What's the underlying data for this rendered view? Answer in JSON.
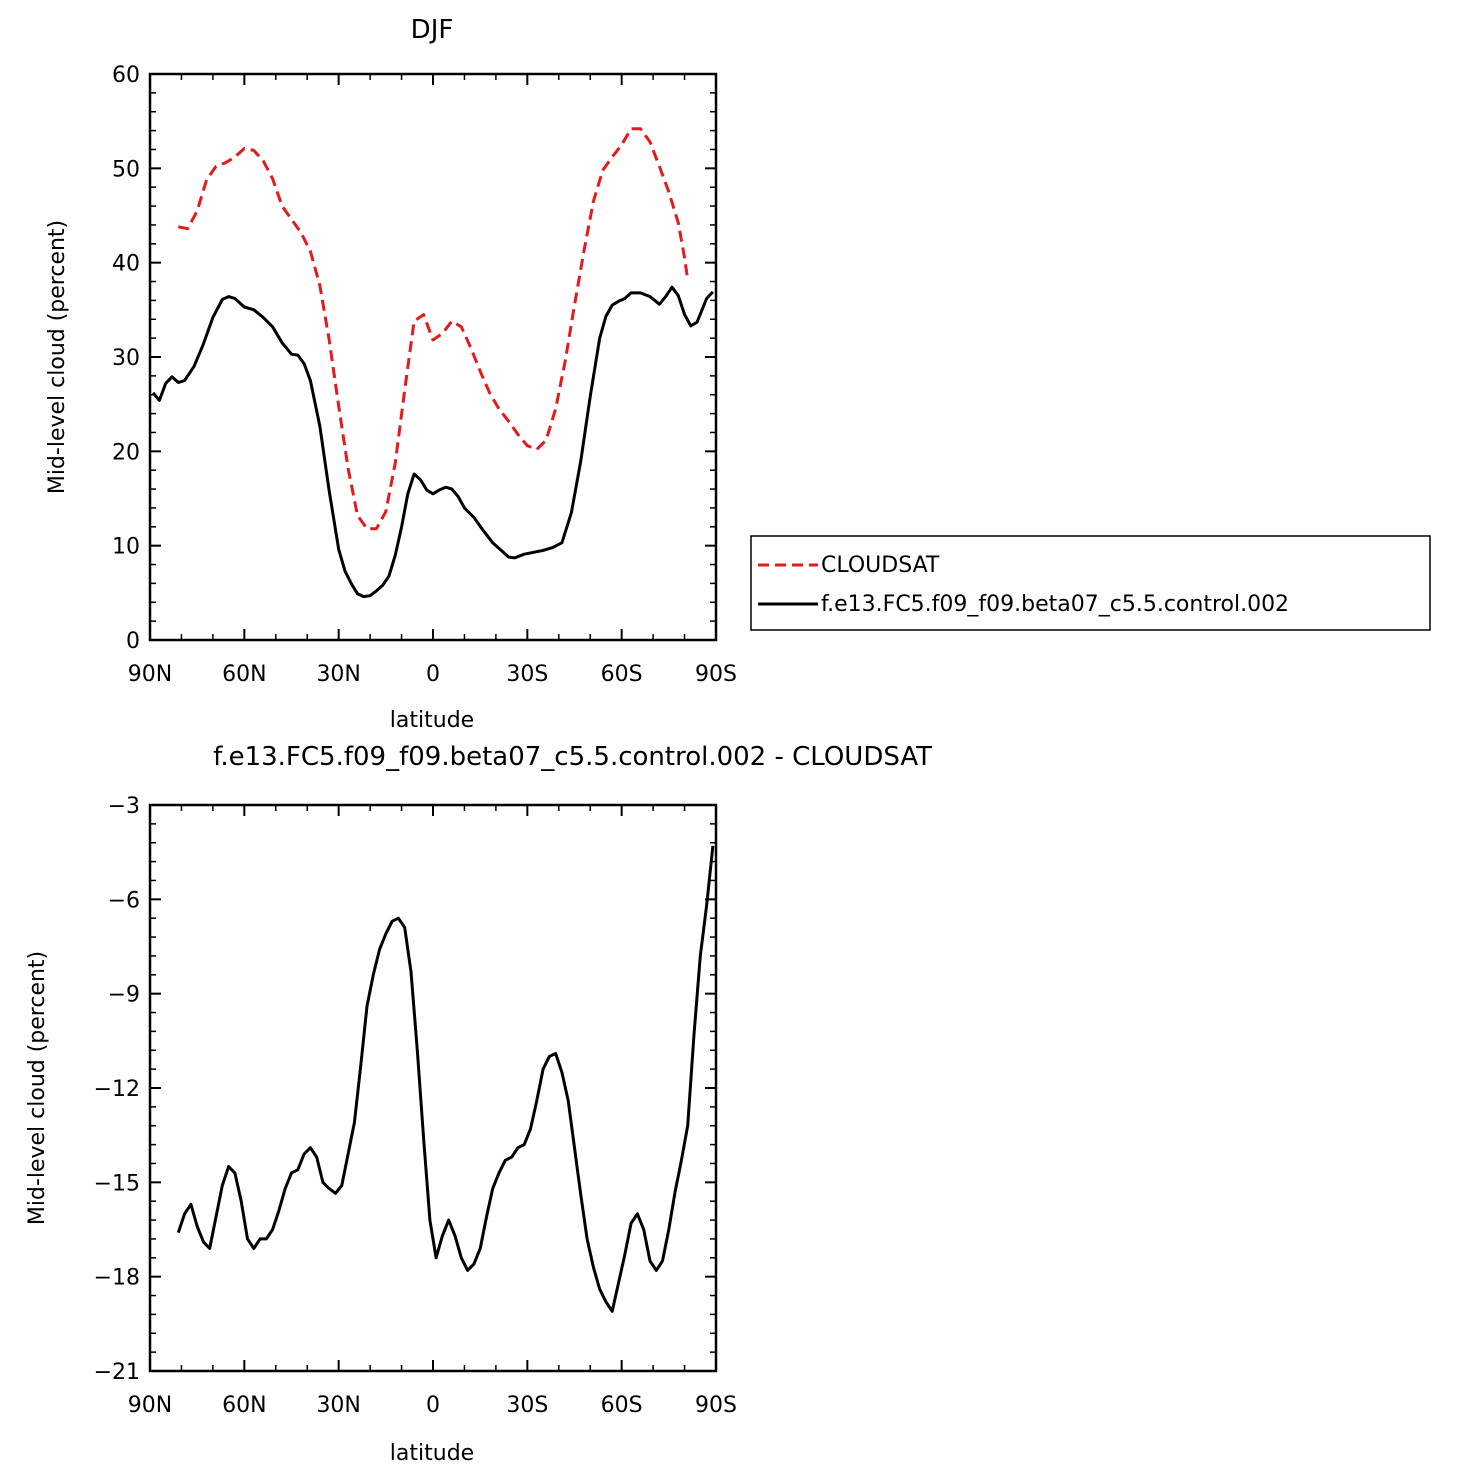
{
  "chart_data": [
    {
      "type": "line",
      "title": "DJF",
      "xlabel": "latitude",
      "ylabel": "Mid-level cloud (percent)",
      "xlim": [
        -90,
        90
      ],
      "ylim": [
        0,
        60
      ],
      "x_ticks": [
        -90,
        -60,
        -30,
        0,
        30,
        60,
        90
      ],
      "x_tick_labels": [
        "90N",
        "60N",
        "30N",
        "0",
        "30S",
        "60S",
        "90S"
      ],
      "y_ticks": [
        0,
        10,
        20,
        30,
        40,
        50,
        60
      ],
      "y_tick_labels": [
        "0",
        "10",
        "20",
        "30",
        "40",
        "50",
        "60"
      ],
      "legend_position": "right",
      "series": [
        {
          "name": "CLOUDSAT",
          "color": "#e41a1c",
          "style": "dashed",
          "points": [
            [
              -81,
              43.8
            ],
            [
              -78,
              43.6
            ],
            [
              -75,
              45.5
            ],
            [
              -72,
              48.8
            ],
            [
              -69,
              50.2
            ],
            [
              -66,
              50.6
            ],
            [
              -63,
              51.2
            ],
            [
              -60,
              52.1
            ],
            [
              -57,
              51.9
            ],
            [
              -54,
              50.8
            ],
            [
              -51,
              48.9
            ],
            [
              -48,
              46
            ],
            [
              -45,
              44.6
            ],
            [
              -42,
              43.2
            ],
            [
              -39,
              41.2
            ],
            [
              -36,
              37.6
            ],
            [
              -33,
              31.8
            ],
            [
              -30,
              24.8
            ],
            [
              -27,
              18.2
            ],
            [
              -24,
              13.2
            ],
            [
              -21,
              11.8
            ],
            [
              -18,
              11.8
            ],
            [
              -15,
              13.6
            ],
            [
              -12,
              18.8
            ],
            [
              -9,
              26.5
            ],
            [
              -6,
              33.8
            ],
            [
              -3,
              34.5
            ],
            [
              0,
              31.8
            ],
            [
              3,
              32.5
            ],
            [
              6,
              33.8
            ],
            [
              9,
              33.2
            ],
            [
              12,
              31
            ],
            [
              15,
              28.5
            ],
            [
              18,
              26.2
            ],
            [
              21,
              24.5
            ],
            [
              24,
              23.2
            ],
            [
              27,
              21.8
            ],
            [
              30,
              20.6
            ],
            [
              33,
              20.2
            ],
            [
              36,
              21.2
            ],
            [
              39,
              24.5
            ],
            [
              42,
              29.5
            ],
            [
              45,
              35.5
            ],
            [
              48,
              41.2
            ],
            [
              51,
              46.5
            ],
            [
              54,
              49.8
            ],
            [
              57,
              51.2
            ],
            [
              60,
              52.5
            ],
            [
              63,
              54.2
            ],
            [
              66,
              54.2
            ],
            [
              69,
              52.8
            ],
            [
              72,
              50.2
            ],
            [
              75,
              47.5
            ],
            [
              78,
              44.2
            ],
            [
              80,
              40.5
            ],
            [
              81,
              38.2
            ]
          ]
        },
        {
          "name": "f.e13.FC5.f09_f09.beta07_c5.5.control.002",
          "color": "#000000",
          "style": "solid",
          "points": [
            [
              -89,
              26.2
            ],
            [
              -87,
              25.4
            ],
            [
              -85,
              27.2
            ],
            [
              -83,
              27.9
            ],
            [
              -81,
              27.3
            ],
            [
              -79,
              27.5
            ],
            [
              -76,
              29
            ],
            [
              -73,
              31.4
            ],
            [
              -70,
              34.2
            ],
            [
              -67,
              36.1
            ],
            [
              -65,
              36.4
            ],
            [
              -63,
              36.2
            ],
            [
              -60,
              35.3
            ],
            [
              -57,
              35
            ],
            [
              -54,
              34.2
            ],
            [
              -51,
              33.2
            ],
            [
              -48,
              31.5
            ],
            [
              -45,
              30.3
            ],
            [
              -43,
              30.2
            ],
            [
              -41,
              29.3
            ],
            [
              -39,
              27.5
            ],
            [
              -36,
              22.7
            ],
            [
              -33,
              15.8
            ],
            [
              -30,
              9.6
            ],
            [
              -28,
              7.3
            ],
            [
              -26,
              6
            ],
            [
              -24,
              4.9
            ],
            [
              -22,
              4.6
            ],
            [
              -20,
              4.7
            ],
            [
              -18,
              5.2
            ],
            [
              -16,
              5.8
            ],
            [
              -14,
              6.8
            ],
            [
              -12,
              9
            ],
            [
              -10,
              12
            ],
            [
              -8,
              15.5
            ],
            [
              -6,
              17.6
            ],
            [
              -4,
              17
            ],
            [
              -2,
              15.9
            ],
            [
              0,
              15.5
            ],
            [
              2,
              15.9
            ],
            [
              4,
              16.2
            ],
            [
              6,
              16
            ],
            [
              8,
              15.2
            ],
            [
              10,
              14
            ],
            [
              13,
              13
            ],
            [
              16,
              11.6
            ],
            [
              19,
              10.3
            ],
            [
              22,
              9.4
            ],
            [
              24,
              8.8
            ],
            [
              26,
              8.7
            ],
            [
              29,
              9.1
            ],
            [
              32,
              9.3
            ],
            [
              35,
              9.5
            ],
            [
              38,
              9.8
            ],
            [
              41,
              10.3
            ],
            [
              44,
              13.5
            ],
            [
              47,
              19
            ],
            [
              50,
              25.8
            ],
            [
              53,
              32
            ],
            [
              55,
              34.3
            ],
            [
              57,
              35.5
            ],
            [
              59,
              35.9
            ],
            [
              61,
              36.2
            ],
            [
              63,
              36.8
            ],
            [
              66,
              36.8
            ],
            [
              69,
              36.4
            ],
            [
              72,
              35.6
            ],
            [
              74,
              36.4
            ],
            [
              76,
              37.4
            ],
            [
              78,
              36.5
            ],
            [
              80,
              34.5
            ],
            [
              82,
              33.3
            ],
            [
              84,
              33.7
            ],
            [
              87,
              36.2
            ],
            [
              89,
              36.9
            ]
          ]
        }
      ]
    },
    {
      "type": "line",
      "title": "f.e13.FC5.f09_f09.beta07_c5.5.control.002 - CLOUDSAT",
      "xlabel": "latitude",
      "ylabel": "Mid-level cloud (percent)",
      "xlim": [
        -90,
        90
      ],
      "ylim": [
        -21,
        -3
      ],
      "x_ticks": [
        -90,
        -60,
        -30,
        0,
        30,
        60,
        90
      ],
      "x_tick_labels": [
        "90N",
        "60N",
        "30N",
        "0",
        "30S",
        "60S",
        "90S"
      ],
      "y_ticks": [
        -21,
        -18,
        -15,
        -12,
        -9,
        -6,
        -3
      ],
      "y_tick_labels": [
        "−21",
        "−18",
        "−15",
        "−12",
        "−9",
        "−6",
        "−3"
      ],
      "series": [
        {
          "color": "#000000",
          "style": "solid",
          "points": [
            [
              -81,
              -16.6
            ],
            [
              -79,
              -16
            ],
            [
              -77,
              -15.7
            ],
            [
              -75,
              -16.4
            ],
            [
              -73,
              -16.9
            ],
            [
              -71,
              -17.1
            ],
            [
              -69,
              -16.1
            ],
            [
              -67,
              -15.1
            ],
            [
              -65,
              -14.5
            ],
            [
              -63,
              -14.7
            ],
            [
              -61,
              -15.6
            ],
            [
              -59,
              -16.8
            ],
            [
              -57,
              -17.1
            ],
            [
              -55,
              -16.8
            ],
            [
              -53,
              -16.8
            ],
            [
              -51,
              -16.5
            ],
            [
              -49,
              -15.9
            ],
            [
              -47,
              -15.2
            ],
            [
              -45,
              -14.7
            ],
            [
              -43,
              -14.6
            ],
            [
              -41,
              -14.1
            ],
            [
              -39,
              -13.9
            ],
            [
              -37,
              -14.2
            ],
            [
              -35,
              -15
            ],
            [
              -33,
              -15.2
            ],
            [
              -31,
              -15.35
            ],
            [
              -29,
              -15.1
            ],
            [
              -27,
              -14.1
            ],
            [
              -25,
              -13.1
            ],
            [
              -23,
              -11.3
            ],
            [
              -21,
              -9.4
            ],
            [
              -19,
              -8.4
            ],
            [
              -17,
              -7.6
            ],
            [
              -15,
              -7.1
            ],
            [
              -13,
              -6.7
            ],
            [
              -11,
              -6.6
            ],
            [
              -9,
              -6.9
            ],
            [
              -7,
              -8.3
            ],
            [
              -5,
              -10.8
            ],
            [
              -3,
              -13.6
            ],
            [
              -1,
              -16.2
            ],
            [
              1,
              -17.4
            ],
            [
              3,
              -16.7
            ],
            [
              5,
              -16.2
            ],
            [
              7,
              -16.7
            ],
            [
              9,
              -17.4
            ],
            [
              11,
              -17.8
            ],
            [
              13,
              -17.6
            ],
            [
              15,
              -17.1
            ],
            [
              17,
              -16.1
            ],
            [
              19,
              -15.2
            ],
            [
              21,
              -14.7
            ],
            [
              23,
              -14.3
            ],
            [
              25,
              -14.2
            ],
            [
              27,
              -13.9
            ],
            [
              29,
              -13.8
            ],
            [
              31,
              -13.3
            ],
            [
              33,
              -12.4
            ],
            [
              35,
              -11.4
            ],
            [
              37,
              -11
            ],
            [
              39,
              -10.9
            ],
            [
              41,
              -11.5
            ],
            [
              43,
              -12.4
            ],
            [
              45,
              -13.9
            ],
            [
              47,
              -15.4
            ],
            [
              49,
              -16.8
            ],
            [
              51,
              -17.7
            ],
            [
              53,
              -18.4
            ],
            [
              55,
              -18.8
            ],
            [
              57,
              -19.1
            ],
            [
              59,
              -18.2
            ],
            [
              61,
              -17.3
            ],
            [
              63,
              -16.3
            ],
            [
              65,
              -16
            ],
            [
              67,
              -16.5
            ],
            [
              69,
              -17.5
            ],
            [
              71,
              -17.8
            ],
            [
              73,
              -17.5
            ],
            [
              75,
              -16.5
            ],
            [
              77,
              -15.3
            ],
            [
              79,
              -14.3
            ],
            [
              81,
              -13.2
            ],
            [
              83,
              -10.3
            ],
            [
              85,
              -7.8
            ],
            [
              87,
              -6.2
            ],
            [
              89,
              -4.3
            ]
          ]
        }
      ]
    }
  ]
}
